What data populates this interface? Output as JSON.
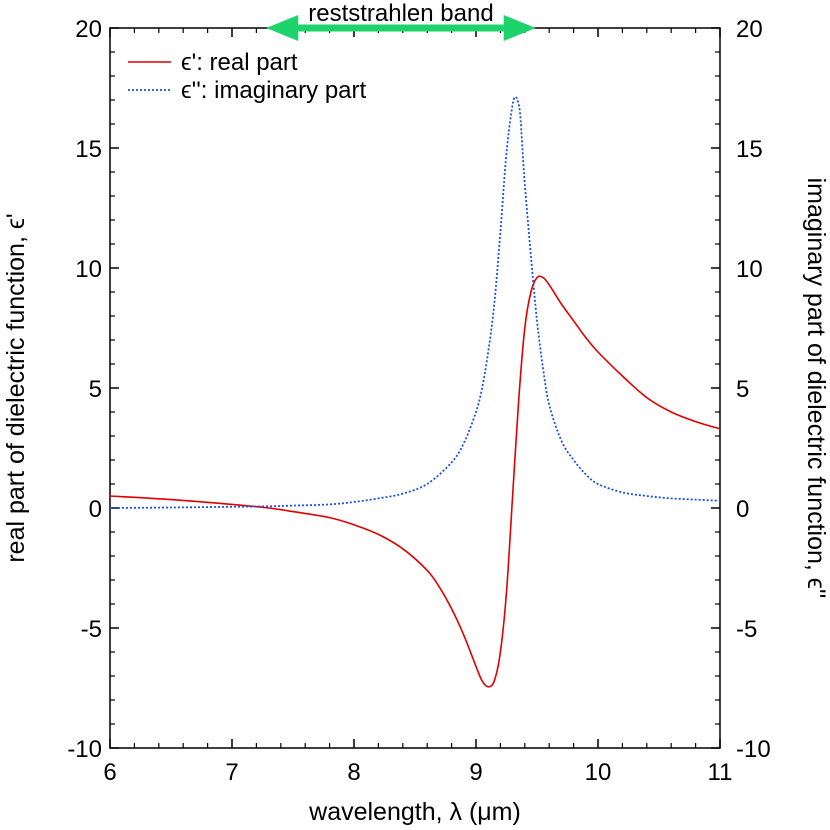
{
  "chart_data": {
    "type": "line",
    "xlabel": "wavelength, λ (μm)",
    "ylabel_left": "real part of dielectric function, ϵ'",
    "ylabel_right": "imaginary part of dielectric function, ϵ''",
    "xlim": [
      6,
      11
    ],
    "ylim": [
      -10,
      20
    ],
    "xticks": [
      "6",
      "7",
      "8",
      "9",
      "10",
      "11"
    ],
    "yticks_left": [
      "-10",
      "-5",
      "0",
      "5",
      "10",
      "15",
      "20"
    ],
    "yticks_right": [
      "-10",
      "-5",
      "0",
      "5",
      "10",
      "15",
      "20"
    ],
    "annotation": {
      "text": "reststrahlen band",
      "x_range": [
        7.42,
        9.35
      ],
      "y": 20,
      "color": "#1dd36b"
    },
    "legend": {
      "placement": "top-left"
    },
    "series": [
      {
        "name": "ϵ': real part",
        "color": "#e00000",
        "style": "solid",
        "x": [
          6.0,
          6.5,
          7.0,
          7.3,
          7.5,
          7.8,
          8.0,
          8.2,
          8.4,
          8.6,
          8.7,
          8.8,
          8.9,
          9.0,
          9.05,
          9.1,
          9.15,
          9.2,
          9.25,
          9.3,
          9.35,
          9.4,
          9.45,
          9.5,
          9.55,
          9.6,
          9.7,
          9.8,
          9.9,
          10.0,
          10.2,
          10.4,
          10.6,
          10.8,
          11.0
        ],
        "values": [
          0.5,
          0.35,
          0.15,
          0.0,
          -0.15,
          -0.4,
          -0.7,
          -1.1,
          -1.7,
          -2.6,
          -3.3,
          -4.2,
          -5.3,
          -6.6,
          -7.2,
          -7.45,
          -7.2,
          -6.0,
          -3.5,
          0.5,
          4.5,
          7.5,
          9.0,
          9.6,
          9.6,
          9.3,
          8.5,
          7.8,
          7.1,
          6.5,
          5.5,
          4.6,
          4.0,
          3.6,
          3.3
        ]
      },
      {
        "name": "ϵ'': imaginary part",
        "color": "#1a50e0",
        "style": "dotted",
        "x": [
          6.0,
          6.5,
          7.0,
          7.3,
          7.5,
          7.8,
          8.0,
          8.2,
          8.4,
          8.6,
          8.8,
          8.9,
          9.0,
          9.05,
          9.1,
          9.15,
          9.2,
          9.25,
          9.3,
          9.33,
          9.36,
          9.38,
          9.4,
          9.45,
          9.5,
          9.55,
          9.6,
          9.7,
          9.8,
          9.9,
          10.0,
          10.2,
          10.4,
          10.6,
          10.8,
          11.0
        ],
        "values": [
          0.0,
          0.02,
          0.05,
          0.07,
          0.1,
          0.15,
          0.25,
          0.4,
          0.6,
          1.0,
          1.9,
          2.7,
          4.0,
          5.0,
          6.5,
          8.5,
          11.5,
          14.8,
          16.8,
          17.1,
          16.5,
          15.0,
          13.5,
          10.5,
          7.8,
          5.8,
          4.3,
          2.8,
          2.0,
          1.4,
          1.0,
          0.65,
          0.5,
          0.4,
          0.35,
          0.3
        ]
      }
    ]
  }
}
